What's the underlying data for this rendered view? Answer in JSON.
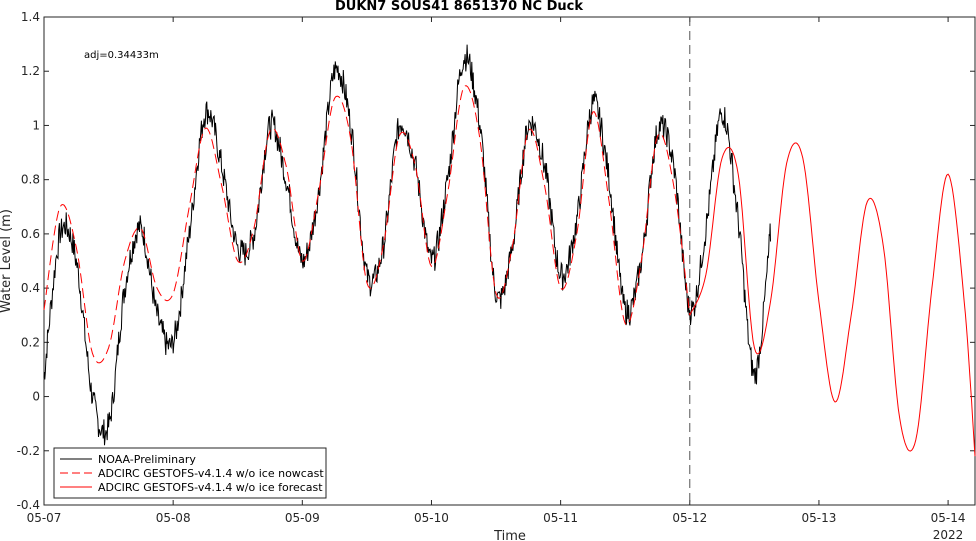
{
  "chart_data": {
    "type": "line",
    "title": "DUKN7 SOUS41 8651370 NC Duck",
    "xlabel": "Time",
    "ylabel": "Water Level (m)",
    "year_label": "2022",
    "annotation": "adj=0.34433m",
    "xlim": [
      "05-07 00:00",
      "05-14 05:00"
    ],
    "ylim": [
      -0.4,
      1.4
    ],
    "x_ticks": [
      "05-07",
      "05-08",
      "05-09",
      "05-10",
      "05-11",
      "05-12",
      "05-13",
      "05-14"
    ],
    "y_ticks": [
      "-0.4",
      "-0.2",
      "0",
      "0.2",
      "0.4",
      "0.6",
      "0.8",
      "1",
      "1.2",
      "1.4"
    ],
    "nowcast_end": "05-12 00:00",
    "legend_position": "bottom-left",
    "series": [
      {
        "name": "NOAA-Preliminary",
        "color": "#000000",
        "style": "solid",
        "x": [
          "05-07 00:00",
          "05-07 03:00",
          "05-07 06:00",
          "05-07 09:00",
          "05-07 12:00",
          "05-07 15:00",
          "05-07 18:00",
          "05-07 21:00",
          "05-08 00:00",
          "05-08 03:00",
          "05-08 06:00",
          "05-08 09:00",
          "05-08 12:00",
          "05-08 15:00",
          "05-08 18:00",
          "05-08 21:00",
          "05-09 00:00",
          "05-09 03:00",
          "05-09 06:00",
          "05-09 09:00",
          "05-09 12:00",
          "05-09 15:00",
          "05-09 18:00",
          "05-09 21:00",
          "05-10 00:00",
          "05-10 03:00",
          "05-10 06:00",
          "05-10 09:00",
          "05-10 12:00",
          "05-10 15:00",
          "05-10 18:00",
          "05-10 21:00",
          "05-11 00:00",
          "05-11 03:00",
          "05-11 06:00",
          "05-11 09:00",
          "05-11 12:00",
          "05-11 15:00",
          "05-11 18:00",
          "05-11 21:00",
          "05-12 00:00",
          "05-12 03:00",
          "05-12 06:00",
          "05-12 09:00",
          "05-12 12:00",
          "05-12 15:00"
        ],
        "values": [
          0.07,
          0.6,
          0.5,
          0.0,
          -0.11,
          0.4,
          0.62,
          0.3,
          0.2,
          0.6,
          1.05,
          0.85,
          0.55,
          0.6,
          1.0,
          0.8,
          0.5,
          0.75,
          1.2,
          1.0,
          0.45,
          0.55,
          1.0,
          0.85,
          0.5,
          0.8,
          1.25,
          1.0,
          0.38,
          0.55,
          1.0,
          0.85,
          0.45,
          0.65,
          1.08,
          0.8,
          0.32,
          0.5,
          0.98,
          0.85,
          0.32,
          0.62,
          1.05,
          0.65,
          0.08,
          0.6
        ]
      },
      {
        "name": "ADCIRC GESTOFS-v4.1.4 w/o ice nowcast",
        "color": "#ff0000",
        "style": "dashed",
        "x": [
          "05-07 00:00",
          "05-07 03:00",
          "05-07 06:00",
          "05-07 09:00",
          "05-07 12:00",
          "05-07 15:00",
          "05-07 18:00",
          "05-07 21:00",
          "05-08 00:00",
          "05-08 03:00",
          "05-08 06:00",
          "05-08 09:00",
          "05-08 12:00",
          "05-08 15:00",
          "05-08 18:00",
          "05-08 21:00",
          "05-09 00:00",
          "05-09 03:00",
          "05-09 06:00",
          "05-09 09:00",
          "05-09 12:00",
          "05-09 15:00",
          "05-09 18:00",
          "05-09 21:00",
          "05-10 00:00",
          "05-10 03:00",
          "05-10 06:00",
          "05-10 09:00",
          "05-10 12:00",
          "05-10 15:00",
          "05-10 18:00",
          "05-10 21:00",
          "05-11 00:00",
          "05-11 03:00",
          "05-11 06:00",
          "05-11 09:00",
          "05-11 12:00",
          "05-11 15:00",
          "05-11 18:00",
          "05-11 21:00",
          "05-12 00:00"
        ],
        "values": [
          0.32,
          0.7,
          0.55,
          0.16,
          0.18,
          0.5,
          0.62,
          0.4,
          0.38,
          0.7,
          0.99,
          0.78,
          0.5,
          0.62,
          0.98,
          0.85,
          0.5,
          0.75,
          1.1,
          0.95,
          0.42,
          0.55,
          0.96,
          0.85,
          0.48,
          0.75,
          1.14,
          0.95,
          0.38,
          0.55,
          0.98,
          0.78,
          0.4,
          0.6,
          1.05,
          0.72,
          0.27,
          0.5,
          0.96,
          0.78,
          0.3
        ]
      },
      {
        "name": "ADCIRC GESTOFS-v4.1.4 w/o ice forecast",
        "color": "#ff0000",
        "style": "solid",
        "x": [
          "05-12 00:00",
          "05-12 03:00",
          "05-12 06:00",
          "05-12 09:00",
          "05-12 12:00",
          "05-12 15:00",
          "05-12 18:00",
          "05-12 21:00",
          "05-13 00:00",
          "05-13 03:00",
          "05-13 06:00",
          "05-13 09:00",
          "05-13 12:00",
          "05-13 15:00",
          "05-13 18:00",
          "05-13 21:00",
          "05-14 00:00",
          "05-14 03:00",
          "05-14 05:00"
        ],
        "values": [
          0.3,
          0.45,
          0.88,
          0.82,
          0.18,
          0.35,
          0.86,
          0.88,
          0.35,
          -0.02,
          0.3,
          0.72,
          0.55,
          -0.08,
          -0.16,
          0.4,
          0.82,
          0.35,
          -0.22
        ]
      }
    ]
  }
}
